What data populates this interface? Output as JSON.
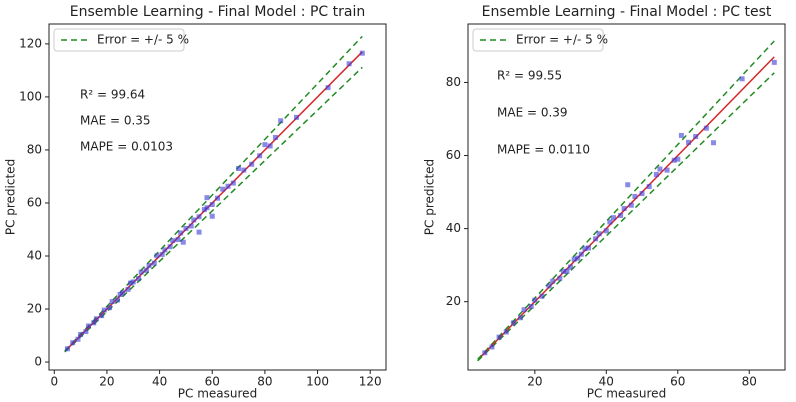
{
  "chart_data": [
    {
      "type": "scatter",
      "title": "Ensemble Learning - Final Model : PC train",
      "xlabel": "PC measured",
      "ylabel": "PC predicted",
      "xlim": [
        -2,
        126
      ],
      "ylim": [
        -3,
        127.5
      ],
      "xticks": [
        0,
        20,
        40,
        60,
        80,
        100,
        120
      ],
      "yticks": [
        0,
        20,
        40,
        60,
        80,
        100,
        120
      ],
      "annotations": [
        "R² = 99.64",
        "MAE = 0.35",
        "MAPE = 0.0103"
      ],
      "legend": "upper left",
      "series": [
        {
          "color": "#3b3bd9",
          "x": [
            5,
            7,
            9,
            10,
            12,
            13,
            15,
            16,
            18,
            19,
            21,
            22,
            24,
            25,
            26,
            28,
            29,
            30,
            32,
            33,
            35,
            36,
            38,
            39,
            41,
            42,
            44,
            45,
            47,
            48,
            49,
            50,
            52,
            53,
            55,
            55,
            57,
            58,
            60,
            62,
            64,
            66,
            68,
            70,
            72,
            75,
            78,
            80,
            82,
            84,
            86,
            92,
            104,
            112,
            117,
            58,
            60
          ],
          "values": [
            5,
            7.3,
            8.6,
            10.4,
            11.5,
            13.6,
            14.8,
            16.3,
            17.5,
            19.6,
            20.5,
            22.8,
            23.4,
            25.5,
            26.1,
            27.4,
            29.8,
            30.2,
            31.5,
            33.9,
            34.6,
            36.4,
            37.3,
            40.1,
            40.6,
            42.3,
            43.5,
            45.8,
            46.2,
            48.7,
            45.2,
            50.4,
            51.3,
            53.6,
            49,
            54.8,
            57.5,
            58.2,
            59.4,
            61.8,
            65.2,
            66.3,
            67.5,
            73,
            72.4,
            74.6,
            77.8,
            82,
            81.5,
            84.7,
            91,
            92.3,
            103.5,
            112.5,
            116.5,
            62,
            55
          ]
        }
      ],
      "lines": [
        {
          "color": "#d62728",
          "x": [
            5,
            117
          ],
          "values": [
            5,
            117
          ]
        }
      ],
      "band": {
        "name": "Error = +/- 5 %",
        "color": "#228b22",
        "x": [
          4,
          117
        ],
        "upper": [
          4.2,
          122.85
        ],
        "lower": [
          3.8,
          111.15
        ]
      }
    },
    {
      "type": "scatter",
      "title": "Ensemble Learning - Final Model : PC test",
      "xlabel": "PC measured",
      "ylabel": "PC predicted",
      "xlim": [
        1.3,
        90
      ],
      "ylim": [
        1.3,
        96
      ],
      "xticks": [
        20,
        40,
        60,
        80
      ],
      "yticks": [
        20,
        40,
        60,
        80
      ],
      "annotations": [
        "R² = 99.55",
        "MAE = 0.39",
        "MAPE = 0.0110"
      ],
      "legend": "upper left",
      "series": [
        {
          "color": "#3b3bd9",
          "x": [
            6,
            8,
            10,
            12,
            14,
            16,
            17,
            19,
            20,
            22,
            24,
            25,
            27,
            28,
            30,
            31,
            32,
            34,
            35,
            37,
            38,
            40,
            41,
            42,
            44,
            45,
            46,
            47,
            48,
            50,
            52,
            54,
            55,
            57,
            59,
            60,
            61,
            63,
            65,
            68,
            70,
            78,
            87,
            29,
            33
          ],
          "values": [
            6,
            7.6,
            10.3,
            11.7,
            14.2,
            15.6,
            17.8,
            18.7,
            20.4,
            21.5,
            24.3,
            25.6,
            26.4,
            28.3,
            29.5,
            31.6,
            31.9,
            34.5,
            34.7,
            37.2,
            38.6,
            39.4,
            41.8,
            43,
            43.6,
            45.5,
            52,
            46.4,
            48.8,
            49.6,
            51.5,
            54.8,
            56.3,
            56,
            58.7,
            59,
            65.5,
            63.6,
            65.2,
            67.5,
            63.5,
            81,
            85.5,
            28.3,
            33
          ]
        }
      ],
      "lines": [
        {
          "color": "#d62728",
          "x": [
            5,
            87
          ],
          "values": [
            5,
            87
          ]
        }
      ],
      "band": {
        "name": "Error = +/- 5 %",
        "color": "#228b22",
        "x": [
          4,
          87
        ],
        "upper": [
          4.2,
          91.35
        ],
        "lower": [
          3.8,
          82.65
        ]
      }
    }
  ]
}
